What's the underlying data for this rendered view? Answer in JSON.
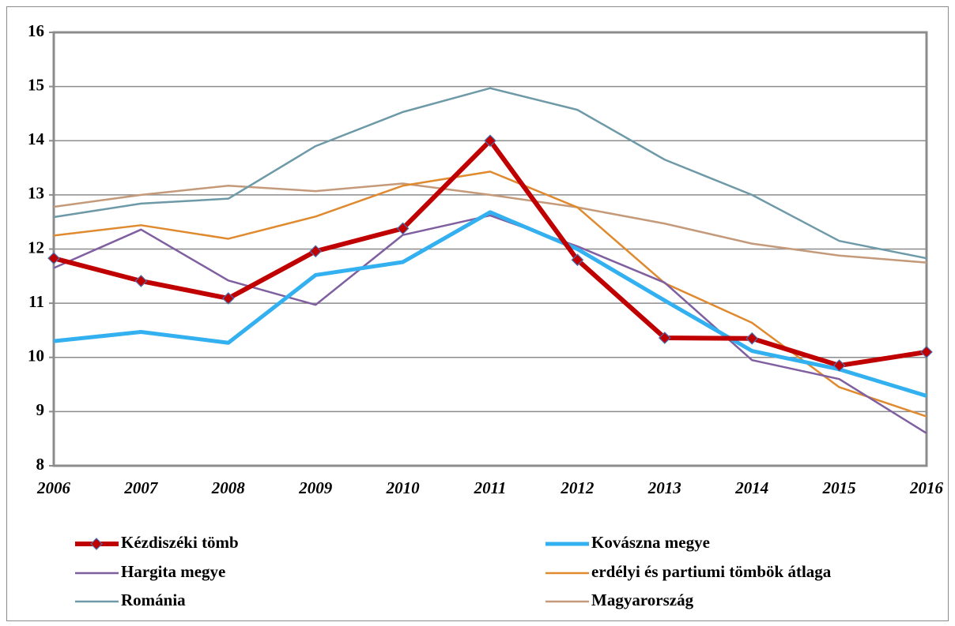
{
  "chart_data": {
    "type": "line",
    "categories": [
      "2006",
      "2007",
      "2008",
      "2009",
      "2010",
      "2011",
      "2012",
      "2013",
      "2014",
      "2015",
      "2016"
    ],
    "ylim": [
      8,
      16
    ],
    "yticks": [
      8,
      9,
      10,
      11,
      12,
      13,
      14,
      15,
      16
    ],
    "grid": true,
    "series": [
      {
        "name": "Kézdiszéki tömb",
        "color": "#c00000",
        "values": [
          11.83,
          11.41,
          11.09,
          11.96,
          12.38,
          14.0,
          11.8,
          10.36,
          10.35,
          9.85,
          10.1
        ]
      },
      {
        "name": "Kovászna megye",
        "color": "#33b0f0",
        "values": [
          10.3,
          10.47,
          10.27,
          11.52,
          11.76,
          12.68,
          12.0,
          11.05,
          10.12,
          9.78,
          9.29
        ]
      },
      {
        "name": "Hargita megye",
        "color": "#7f5fa0",
        "values": [
          11.65,
          12.36,
          11.42,
          10.97,
          12.26,
          12.62,
          12.05,
          11.38,
          9.95,
          9.6,
          8.6
        ]
      },
      {
        "name": "erdélyi és partiumi tömbök átlaga",
        "color": "#e08a30",
        "values": [
          12.25,
          12.44,
          12.19,
          12.6,
          13.17,
          13.43,
          12.77,
          11.37,
          10.64,
          9.45,
          8.91
        ]
      },
      {
        "name": "Románia",
        "color": "#6e9aa8",
        "values": [
          12.59,
          12.84,
          12.93,
          13.9,
          14.53,
          14.97,
          14.57,
          13.65,
          13.0,
          12.15,
          11.83
        ]
      },
      {
        "name": "Magyarország",
        "color": "#c49a7a",
        "values": [
          12.78,
          13.0,
          13.17,
          13.07,
          13.21,
          13.0,
          12.77,
          12.47,
          12.1,
          11.88,
          11.75
        ]
      }
    ]
  }
}
